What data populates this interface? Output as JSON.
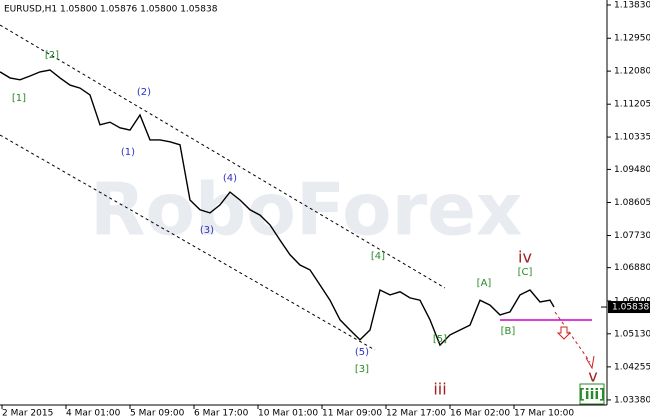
{
  "chart_data": {
    "type": "line",
    "title": "EURUSD,H1  1.05800 1.05876 1.05800 1.05838",
    "watermark": "RoboForex",
    "x": [
      0,
      5,
      10,
      15,
      20,
      25,
      30,
      35,
      40,
      45,
      50,
      55,
      60,
      65,
      70,
      75,
      80,
      85,
      90,
      95,
      100,
      105,
      110,
      115,
      120,
      125,
      130,
      135,
      140,
      145,
      150,
      155,
      160,
      165,
      170,
      175,
      180,
      185,
      190,
      195,
      200,
      205,
      210,
      215,
      220,
      225,
      230,
      235,
      240,
      245,
      250,
      255,
      260,
      265,
      270,
      275,
      277
    ],
    "series": [
      {
        "name": "EURUSD",
        "color": "#000000",
        "values": [
          1.1206,
          1.119,
          1.1185,
          1.1195,
          1.1206,
          1.1211,
          1.119,
          1.1171,
          1.1163,
          1.1145,
          1.1066,
          1.1073,
          1.1058,
          1.1052,
          1.1092,
          1.1026,
          1.1026,
          1.1021,
          1.1013,
          1.0867,
          1.0841,
          1.0833,
          1.0854,
          1.0888,
          1.0867,
          1.0841,
          1.0827,
          1.0801,
          1.0761,
          1.0722,
          1.0695,
          1.0682,
          1.0642,
          1.0602,
          1.055,
          1.0523,
          1.0497,
          1.0523,
          1.0629,
          1.0616,
          1.0624,
          1.0608,
          1.0602,
          1.055,
          1.0483,
          1.051,
          1.0523,
          1.0536,
          1.0602,
          1.0589,
          1.0563,
          1.0571,
          1.0616,
          1.0629,
          1.0597,
          1.0602,
          1.05838
        ]
      }
    ],
    "last_price": {
      "value": 1.05838,
      "label": "1.05838"
    },
    "xlim": [
      0,
      303.5
    ],
    "ylim": [
      1.03246,
      1.13962
    ],
    "xticks": [
      {
        "value": 1,
        "label": "2 Mar 2015"
      },
      {
        "value": 33,
        "label": "4 Mar 01:00"
      },
      {
        "value": 65,
        "label": "5 Mar 09:00"
      },
      {
        "value": 97,
        "label": "6 Mar 17:00"
      },
      {
        "value": 129,
        "label": "10 Mar 01:00"
      },
      {
        "value": 161,
        "label": "11 Mar 09:00"
      },
      {
        "value": 193,
        "label": "12 Mar 17:00"
      },
      {
        "value": 225,
        "label": "16 Mar 02:00"
      },
      {
        "value": 257,
        "label": "17 Mar 10:00"
      }
    ],
    "yticks": [
      {
        "value": 1.1383,
        "label": "1.13830"
      },
      {
        "value": 1.1295,
        "label": "1.12950"
      },
      {
        "value": 1.1208,
        "label": "1.12080"
      },
      {
        "value": 1.11205,
        "label": "1.11205"
      },
      {
        "value": 1.10335,
        "label": "1.10335"
      },
      {
        "value": 1.0948,
        "label": "1.09480"
      },
      {
        "value": 1.08605,
        "label": "1.08605"
      },
      {
        "value": 1.0773,
        "label": "1.07730"
      },
      {
        "value": 1.0688,
        "label": "1.06880"
      },
      {
        "value": 1.06,
        "label": "1.06000"
      },
      {
        "value": 1.0513,
        "label": "1.05130"
      },
      {
        "value": 1.04255,
        "label": "1.04255"
      },
      {
        "value": 1.0338,
        "label": "1.03380"
      }
    ],
    "grid": false,
    "annotations": [
      {
        "text": "[1]",
        "color": "#2a8a2a"
      },
      {
        "text": "[2]",
        "color": "#2a8a2a"
      },
      {
        "text": "(1)",
        "color": "#3030c0"
      },
      {
        "text": "(2)",
        "color": "#3030c0"
      },
      {
        "text": "(3)",
        "color": "#3030c0"
      },
      {
        "text": "(4)",
        "color": "#3030c0"
      },
      {
        "text": "(5)",
        "color": "#3030c0"
      },
      {
        "text": "[3]",
        "color": "#2a8a2a"
      },
      {
        "text": "[4]",
        "color": "#2a8a2a"
      },
      {
        "text": "[5]",
        "color": "#2a8a2a"
      },
      {
        "text": "iii",
        "color": "#a02020"
      },
      {
        "text": "[A]",
        "color": "#2a8a2a"
      },
      {
        "text": "[B]",
        "color": "#2a8a2a"
      },
      {
        "text": "[C]",
        "color": "#2a8a2a"
      },
      {
        "text": "iv",
        "color": "#a02020"
      },
      {
        "text": "v",
        "color": "#a02020"
      },
      {
        "text": "[iii]",
        "color": "#2a8a2a"
      }
    ]
  }
}
